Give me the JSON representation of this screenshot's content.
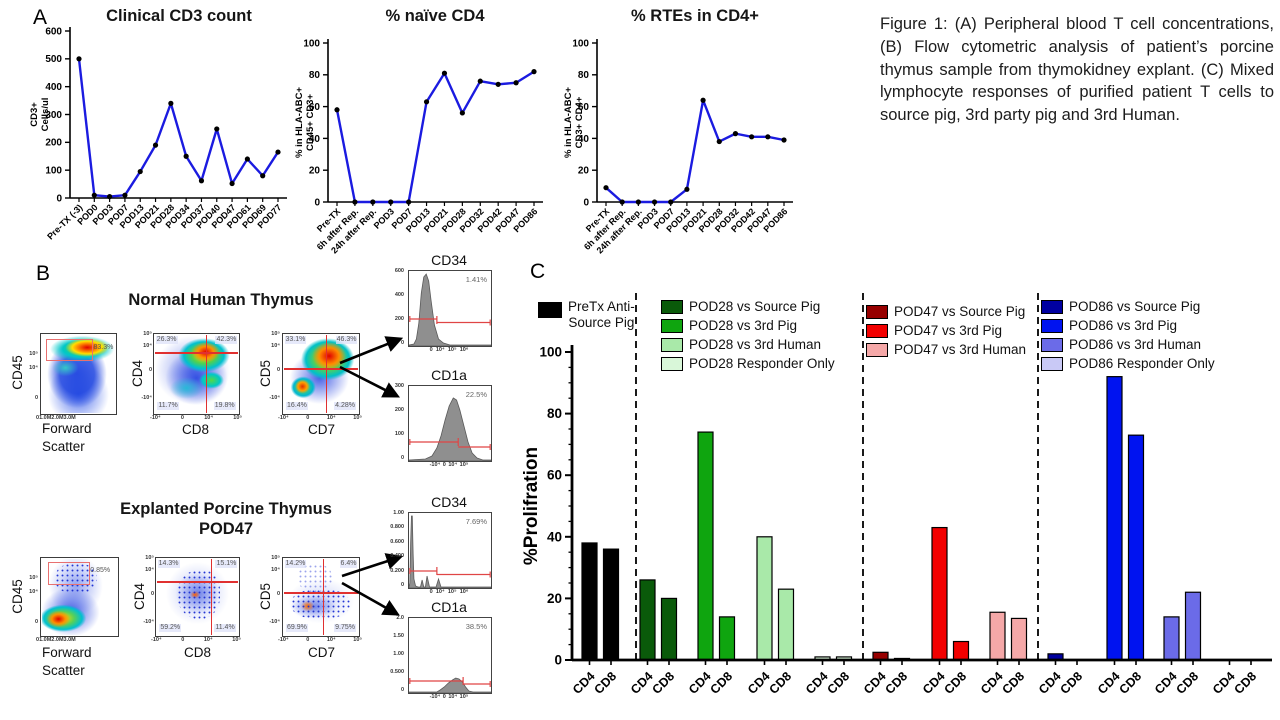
{
  "panel_labels": {
    "a": "A",
    "b": "B",
    "c": "C"
  },
  "caption": "Figure 1: (A) Peripheral blood T cell concentrations, (B) Flow cytometric analysis of patient’s porcine thymus sample from thymokidney explant. (C) Mixed lymphocyte responses of purified patient T cells to source pig, 3rd party pig and 3rd Human.",
  "chart_data": [
    {
      "type": "line",
      "id": "cd3",
      "title": "Clinical CD3 count",
      "ylabel_lines": [
        "CD3+",
        "Cells/ul"
      ],
      "ylim": [
        0,
        600
      ],
      "ytick_step": 100,
      "categories": [
        "Pre-TX (-3)",
        "POD0",
        "POD3",
        "POD7",
        "POD13",
        "POD21",
        "POD28",
        "POD34",
        "POD37",
        "POD40",
        "POD47",
        "POD61",
        "POD69",
        "POD77"
      ],
      "values": [
        500,
        10,
        5,
        10,
        95,
        190,
        340,
        150,
        62,
        248,
        52,
        140,
        80,
        165
      ],
      "line_color": "#1b1be0",
      "marker_color": "#000000"
    },
    {
      "type": "line",
      "id": "naive",
      "title": "% naïve CD4",
      "ylabel_lines": [
        "% in HLA-ABC+",
        "CD45+ CD3+"
      ],
      "ylim": [
        0,
        100
      ],
      "ytick_step": 20,
      "categories": [
        "Pre-TX",
        "6h after Rep.",
        "24h after Rep.",
        "POD3",
        "POD7",
        "POD13",
        "POD21",
        "POD28",
        "POD32",
        "POD42",
        "POD47",
        "POD86"
      ],
      "values": [
        58,
        0,
        0,
        0,
        0,
        63,
        81,
        56,
        76,
        74,
        75,
        82
      ],
      "line_color": "#1b1be0",
      "marker_color": "#000000"
    },
    {
      "type": "line",
      "id": "rte",
      "title": "% RTEs in CD4+",
      "ylabel_lines": [
        "% in HLA-ABC+",
        "CD3+ CD4+"
      ],
      "ylim": [
        0,
        100
      ],
      "ytick_step": 20,
      "categories": [
        "Pre-TX",
        "6h after Rep.",
        "24h after Rep.",
        "POD3",
        "POD7",
        "POD13",
        "POD21",
        "POD28",
        "POD32",
        "POD42",
        "POD47",
        "POD86"
      ],
      "values": [
        9,
        0,
        0,
        0,
        0,
        8,
        64,
        38,
        43,
        41,
        41,
        39
      ],
      "line_color": "#1b1be0",
      "marker_color": "#000000"
    },
    {
      "type": "bar",
      "id": "mlr",
      "ylabel": "%Prolifration",
      "ylim": [
        0,
        100
      ],
      "ytick_step": 20,
      "bar_xlabels": [
        "CD4",
        "CD8"
      ],
      "legend_first_lines": [
        "PreTx Anti-",
        "Source Pig"
      ],
      "series": [
        {
          "label": "PreTx Anti-Source Pig",
          "color": "#000000",
          "values": [
            38,
            36
          ]
        },
        {
          "label": "POD28 vs Source Pig",
          "color": "#0a5a0a",
          "values": [
            26,
            20
          ]
        },
        {
          "label": "POD28 vs 3rd Pig",
          "color": "#0fa50f",
          "values": [
            74,
            14
          ]
        },
        {
          "label": "POD28 vs 3rd Human",
          "color": "#a9e9a9",
          "values": [
            40,
            23
          ]
        },
        {
          "label": "POD28 Responder Only",
          "color": "#d9f7d9",
          "values": [
            1,
            1
          ]
        },
        {
          "label": "POD47 vs Source Pig",
          "color": "#970000",
          "values": [
            2.5,
            0.5
          ]
        },
        {
          "label": "POD47 vs 3rd Pig",
          "color": "#f20000",
          "values": [
            43,
            6
          ]
        },
        {
          "label": "POD47 vs 3rd Human",
          "color": "#f5a8a8",
          "values": [
            15.5,
            13.5
          ]
        },
        {
          "label": "POD86 vs Source Pig",
          "color": "#0000a0",
          "values": [
            2,
            0
          ]
        },
        {
          "label": "POD86 vs 3rd Pig",
          "color": "#0013f0",
          "values": [
            92,
            73
          ]
        },
        {
          "label": "POD86 vs 3rd Human",
          "color": "#6b6be8",
          "values": [
            14,
            22
          ]
        },
        {
          "label": "POD86 Responder Only",
          "color": "#c9c9f6",
          "values": [
            0,
            0
          ]
        }
      ]
    }
  ],
  "flow": {
    "row1_title": "Normal Human Thymus",
    "row2_title1": "Explanted Porcine Thymus",
    "row2_title2": "POD47",
    "fsc_label1": "Forward",
    "fsc_label2": "Scatter",
    "p1": {
      "ylabel": "CD45",
      "gate": "83.3%"
    },
    "p2": {
      "ylabel": "CD4",
      "xlabel": "CD8",
      "tl": "26.3%",
      "tr": "42.3%",
      "bl": "11.7%",
      "br": "19.8%"
    },
    "p3": {
      "ylabel": "CD5",
      "xlabel": "CD7",
      "tl": "33.1%",
      "tr": "46.3%",
      "bl": "16.4%",
      "br": "4.28%"
    },
    "p4": {
      "ylabel": "CD45",
      "gate": "0.85%"
    },
    "p5": {
      "ylabel": "CD4",
      "xlabel": "CD8",
      "tl": "14.3%",
      "tr": "15.1%",
      "bl": "59.2%",
      "br": "11.4%"
    },
    "p6": {
      "ylabel": "CD5",
      "xlabel": "CD7",
      "tl": "14.2%",
      "tr": "6.4%",
      "bl": "69.9%",
      "br": "9.75%"
    },
    "ticks": {
      "fsc": [
        "0",
        "1.0M",
        "2.0M",
        "3.0M"
      ],
      "log": [
        "-10⁴",
        "0",
        "10⁴",
        "10⁵"
      ],
      "loghi": [
        "0",
        "10⁴",
        "10⁵",
        "10⁶"
      ],
      "logy": [
        "10⁵",
        "10⁴",
        "0",
        "-10⁴"
      ],
      "cd45y": [
        "10⁵",
        "10⁴",
        "0"
      ]
    }
  },
  "histograms": [
    {
      "title": "CD34",
      "pct": "1.41%",
      "yticks": [
        "600",
        "400",
        "200",
        "0"
      ]
    },
    {
      "title": "CD1a",
      "pct": "22.5%",
      "yticks": [
        "300",
        "200",
        "100",
        "0"
      ]
    },
    {
      "title": "CD34",
      "pct": "7.69%",
      "yticks": [
        "1.00",
        "0.800",
        "0.600",
        "0.400",
        "0.200",
        "0"
      ]
    },
    {
      "title": "CD1a",
      "pct": "38.5%",
      "yticks": [
        "2.0",
        "1.50",
        "1.00",
        "0.500",
        "0"
      ]
    }
  ]
}
